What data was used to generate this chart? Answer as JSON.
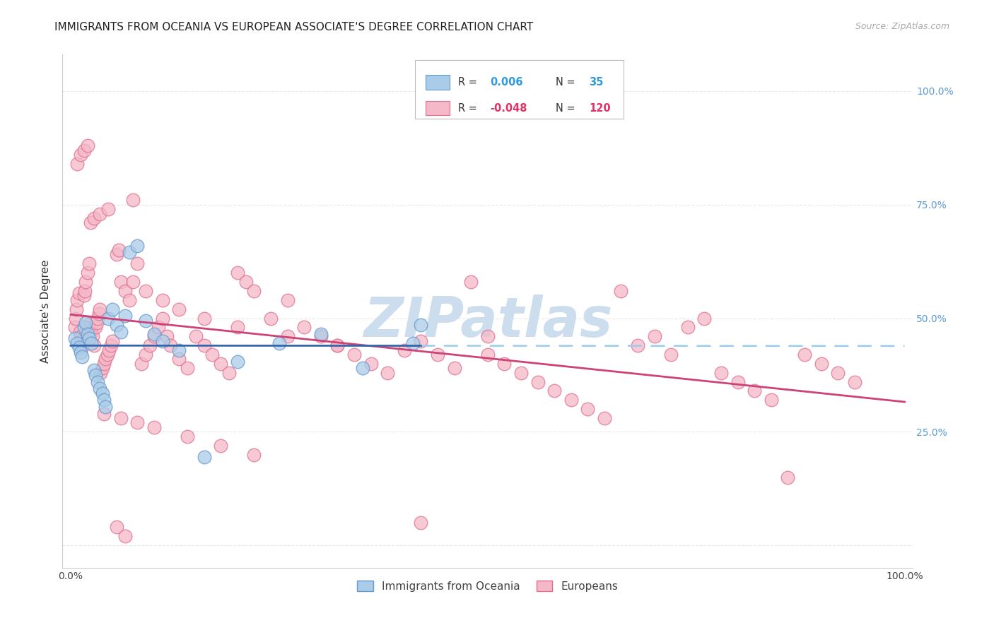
{
  "title": "IMMIGRANTS FROM OCEANIA VS EUROPEAN ASSOCIATE'S DEGREE CORRELATION CHART",
  "source": "Source: ZipAtlas.com",
  "ylabel": "Associate's Degree",
  "watermark": "ZIPatlas",
  "watermark_color": "#ccdded",
  "title_color": "#222222",
  "title_fontsize": 11,
  "source_fontsize": 9,
  "source_color": "#aaaaaa",
  "blue_color": "#aacce8",
  "blue_edge_color": "#6699cc",
  "pink_color": "#f4b8c8",
  "pink_edge_color": "#e07090",
  "blue_line_color": "#3366aa",
  "pink_line_color": "#cc4477",
  "dashed_line_color": "#99ccee",
  "grid_color": "#e8e8e8",
  "blue_x": [
    0.005,
    0.008,
    0.01,
    0.012,
    0.014,
    0.016,
    0.018,
    0.02,
    0.022,
    0.025,
    0.028,
    0.03,
    0.032,
    0.035,
    0.038,
    0.04,
    0.042,
    0.045,
    0.05,
    0.055,
    0.06,
    0.065,
    0.07,
    0.08,
    0.09,
    0.1,
    0.11,
    0.13,
    0.16,
    0.2,
    0.25,
    0.3,
    0.35,
    0.41,
    0.42
  ],
  "blue_y": [
    0.455,
    0.445,
    0.435,
    0.425,
    0.415,
    0.48,
    0.49,
    0.465,
    0.455,
    0.445,
    0.385,
    0.375,
    0.36,
    0.345,
    0.335,
    0.32,
    0.305,
    0.5,
    0.52,
    0.485,
    0.47,
    0.505,
    0.645,
    0.66,
    0.495,
    0.465,
    0.45,
    0.43,
    0.195,
    0.405,
    0.445,
    0.465,
    0.39,
    0.445,
    0.485
  ],
  "pink_x": [
    0.005,
    0.006,
    0.007,
    0.008,
    0.01,
    0.011,
    0.012,
    0.013,
    0.015,
    0.016,
    0.017,
    0.018,
    0.02,
    0.022,
    0.023,
    0.024,
    0.025,
    0.026,
    0.028,
    0.03,
    0.031,
    0.032,
    0.034,
    0.035,
    0.036,
    0.038,
    0.04,
    0.042,
    0.044,
    0.046,
    0.048,
    0.05,
    0.055,
    0.058,
    0.06,
    0.065,
    0.07,
    0.075,
    0.08,
    0.085,
    0.09,
    0.095,
    0.1,
    0.105,
    0.11,
    0.115,
    0.12,
    0.13,
    0.14,
    0.15,
    0.16,
    0.17,
    0.18,
    0.19,
    0.2,
    0.21,
    0.22,
    0.24,
    0.26,
    0.28,
    0.3,
    0.32,
    0.34,
    0.36,
    0.38,
    0.4,
    0.42,
    0.44,
    0.46,
    0.48,
    0.5,
    0.52,
    0.54,
    0.56,
    0.58,
    0.6,
    0.62,
    0.64,
    0.66,
    0.68,
    0.7,
    0.72,
    0.74,
    0.76,
    0.78,
    0.8,
    0.82,
    0.84,
    0.86,
    0.88,
    0.9,
    0.92,
    0.94,
    0.04,
    0.06,
    0.08,
    0.1,
    0.14,
    0.18,
    0.22,
    0.008,
    0.012,
    0.016,
    0.02,
    0.024,
    0.028,
    0.035,
    0.045,
    0.055,
    0.065,
    0.075,
    0.09,
    0.11,
    0.13,
    0.16,
    0.2,
    0.26,
    0.32,
    0.42,
    0.5
  ],
  "pink_y": [
    0.48,
    0.5,
    0.52,
    0.54,
    0.555,
    0.47,
    0.46,
    0.45,
    0.44,
    0.55,
    0.56,
    0.58,
    0.6,
    0.62,
    0.48,
    0.49,
    0.47,
    0.46,
    0.44,
    0.48,
    0.49,
    0.5,
    0.51,
    0.52,
    0.38,
    0.39,
    0.4,
    0.41,
    0.42,
    0.43,
    0.44,
    0.45,
    0.64,
    0.65,
    0.58,
    0.56,
    0.54,
    0.58,
    0.62,
    0.4,
    0.42,
    0.44,
    0.46,
    0.48,
    0.5,
    0.46,
    0.44,
    0.41,
    0.39,
    0.46,
    0.44,
    0.42,
    0.4,
    0.38,
    0.6,
    0.58,
    0.56,
    0.5,
    0.54,
    0.48,
    0.46,
    0.44,
    0.42,
    0.4,
    0.38,
    0.43,
    0.45,
    0.42,
    0.39,
    0.58,
    0.42,
    0.4,
    0.38,
    0.36,
    0.34,
    0.32,
    0.3,
    0.28,
    0.56,
    0.44,
    0.46,
    0.42,
    0.48,
    0.5,
    0.38,
    0.36,
    0.34,
    0.32,
    0.15,
    0.42,
    0.4,
    0.38,
    0.36,
    0.29,
    0.28,
    0.27,
    0.26,
    0.24,
    0.22,
    0.2,
    0.84,
    0.86,
    0.87,
    0.88,
    0.71,
    0.72,
    0.73,
    0.74,
    0.04,
    0.02,
    0.76,
    0.56,
    0.54,
    0.52,
    0.5,
    0.48,
    0.46,
    0.44,
    0.05,
    0.46
  ]
}
